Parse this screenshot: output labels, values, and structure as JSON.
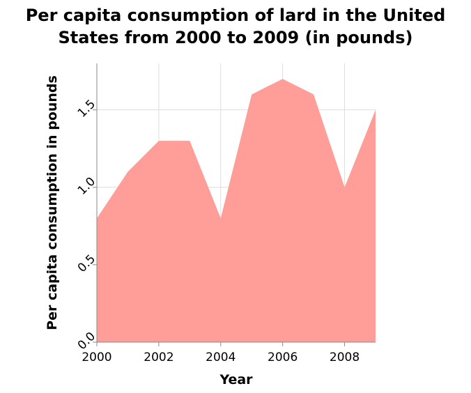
{
  "chart_data": {
    "type": "area",
    "title": "Per capita consumption of lard in the United States from 2000 to 2009 (in pounds)",
    "title_lines": [
      "Per capita consumption of lard in the United",
      "States from 2000 to 2009 (in pounds)"
    ],
    "xlabel": "Year",
    "ylabel": "Per capita consumption in pounds",
    "x": [
      2000,
      2001,
      2002,
      2003,
      2004,
      2005,
      2006,
      2007,
      2008,
      2009
    ],
    "values": [
      0.8,
      1.1,
      1.3,
      1.3,
      0.8,
      1.6,
      1.7,
      1.6,
      1.0,
      1.5
    ],
    "xlim": [
      2000,
      2009
    ],
    "ylim": [
      0,
      1.8
    ],
    "x_ticks": [
      2000,
      2002,
      2004,
      2006,
      2008
    ],
    "x_tick_labels": [
      "2000",
      "2002",
      "2004",
      "2006",
      "2008"
    ],
    "y_ticks": [
      0.0,
      0.5,
      1.0,
      1.5
    ],
    "y_tick_labels": [
      "0.0",
      "0.5",
      "1.0",
      "1.5"
    ],
    "grid": true,
    "fill_color": "#ff9e99",
    "grid_color": "#dddddd",
    "axis_color": "#888888"
  }
}
